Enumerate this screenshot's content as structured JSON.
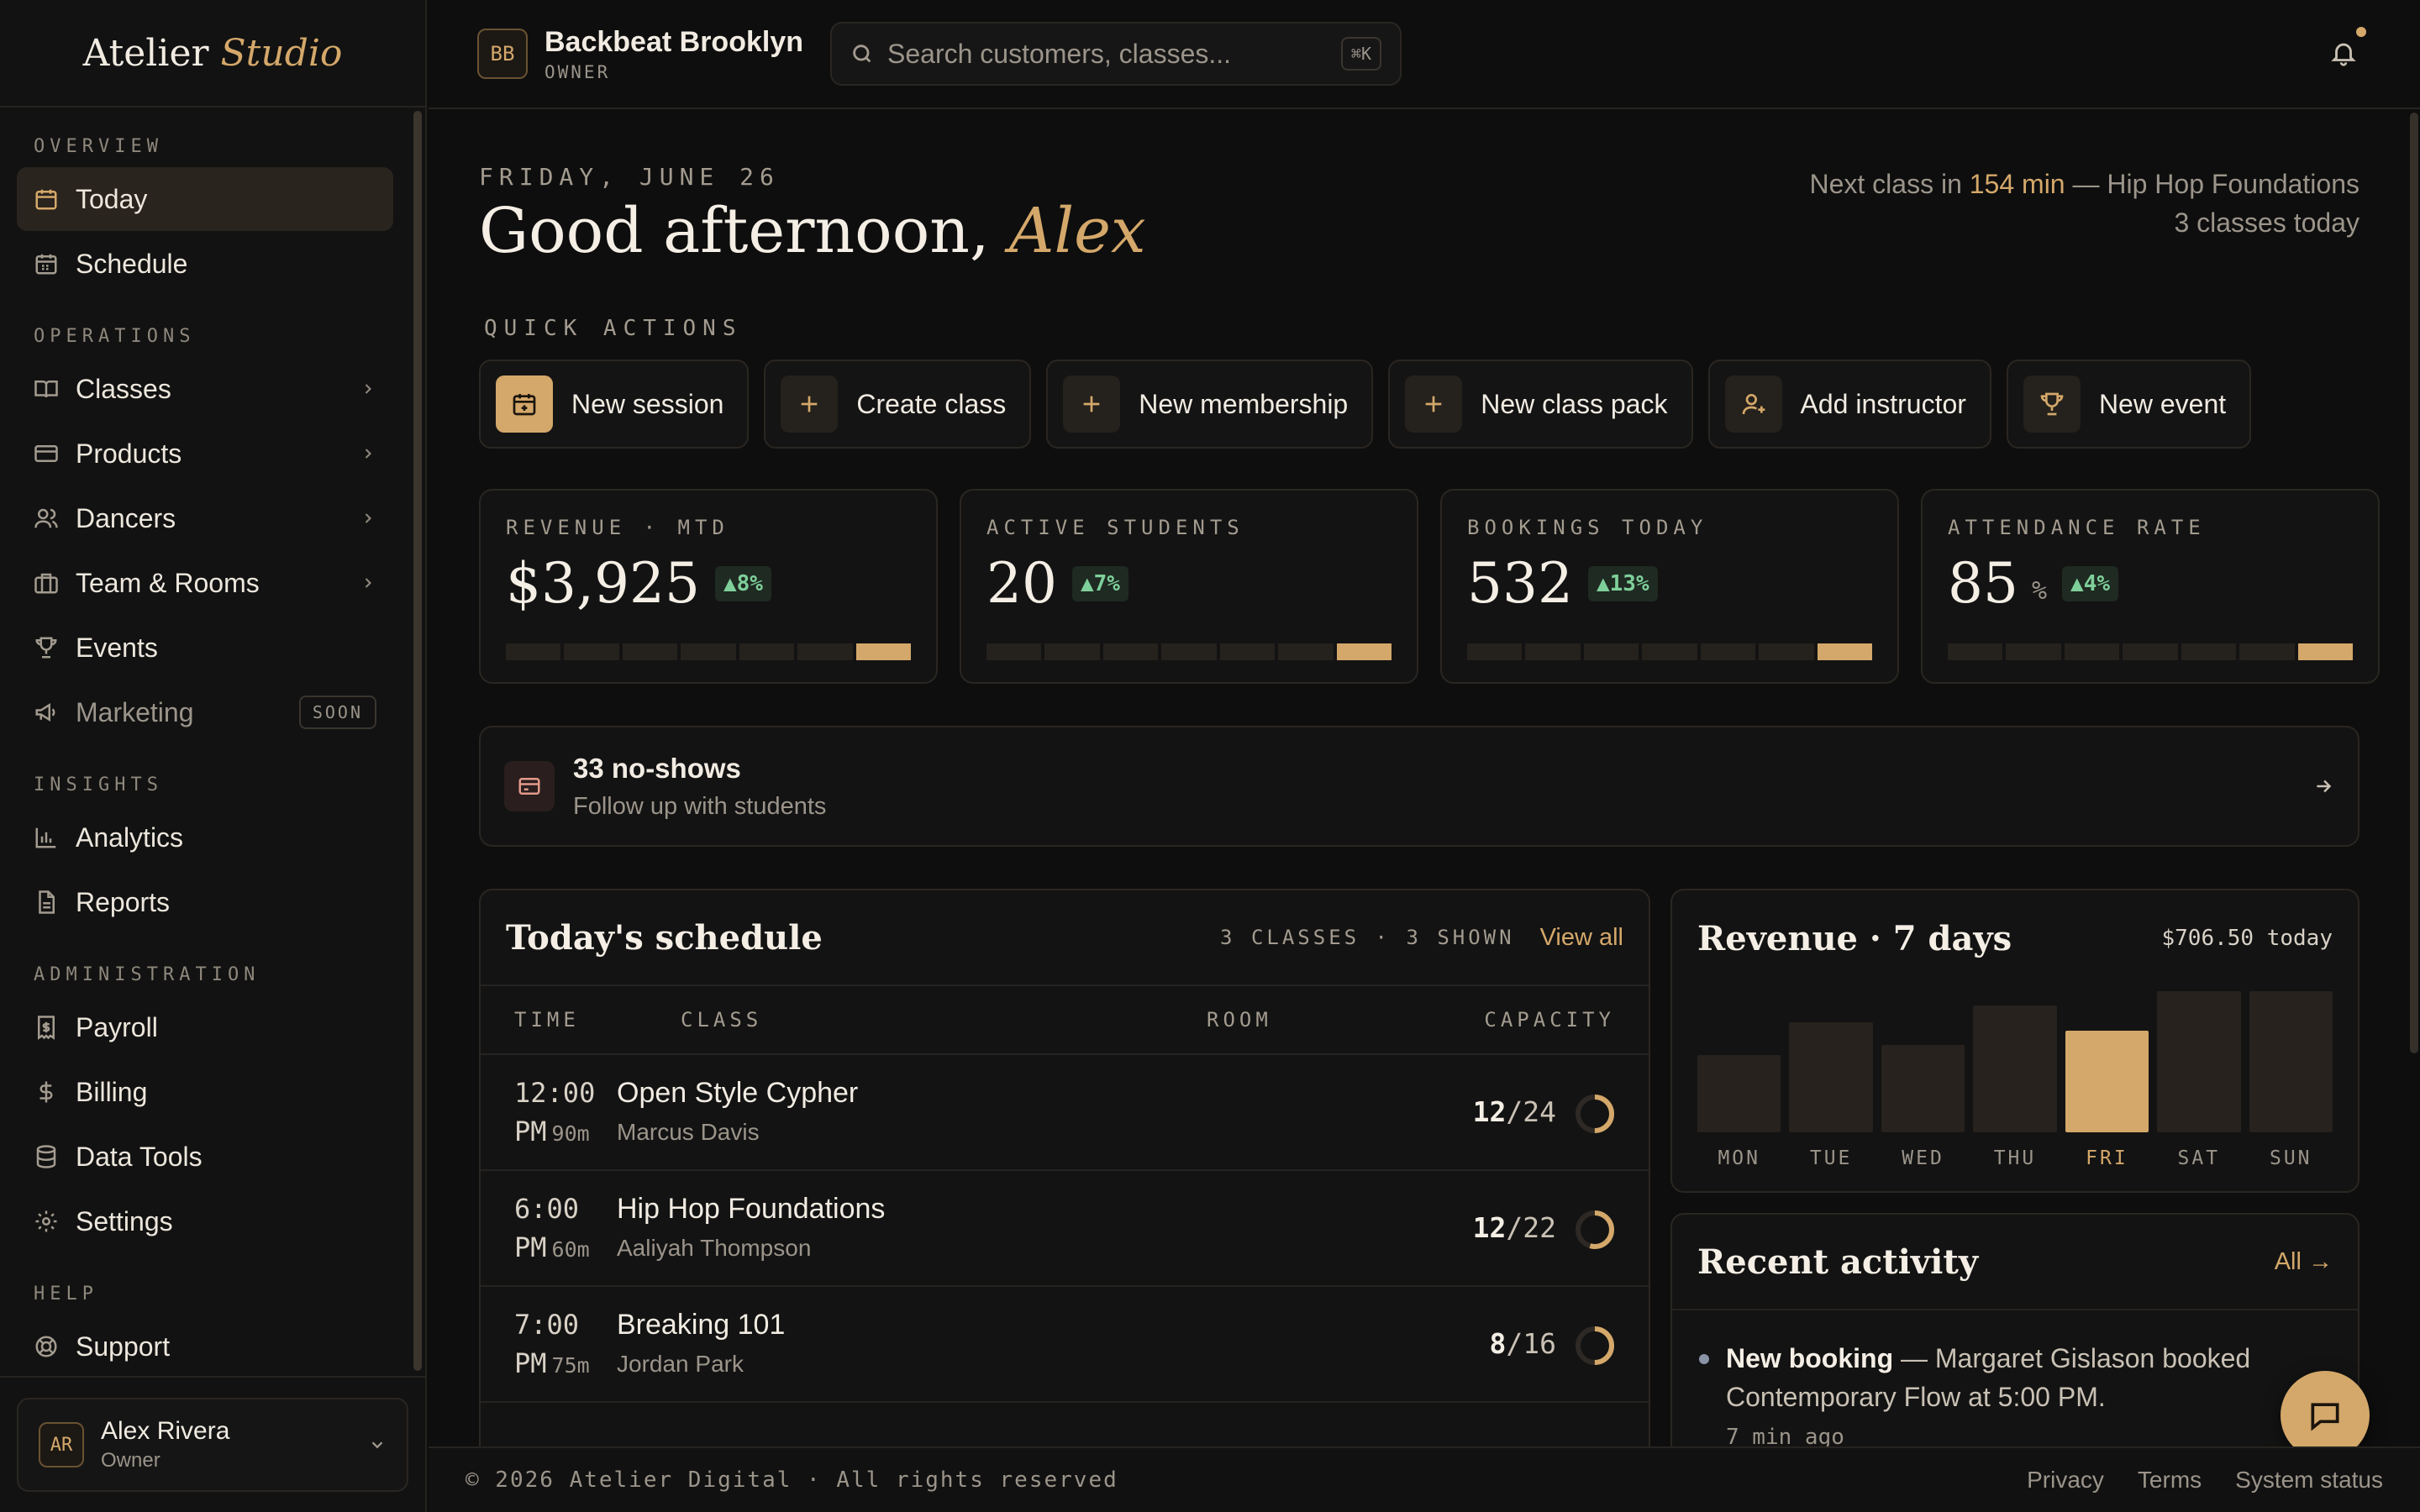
{
  "brand": {
    "name": "Atelier",
    "accent": "Studio"
  },
  "sidebar": {
    "sections": {
      "overview": "OVERVIEW",
      "operations": "OPERATIONS",
      "insights": "INSIGHTS",
      "administration": "ADMINISTRATION",
      "help": "HELP"
    },
    "items": {
      "today": "Today",
      "schedule": "Schedule",
      "classes": "Classes",
      "products": "Products",
      "dancers": "Dancers",
      "team_rooms": "Team & Rooms",
      "events": "Events",
      "marketing": "Marketing",
      "marketing_badge": "SOON",
      "analytics": "Analytics",
      "reports": "Reports",
      "payroll": "Payroll",
      "billing": "Billing",
      "data_tools": "Data Tools",
      "settings": "Settings",
      "support": "Support"
    },
    "user": {
      "initials": "AR",
      "name": "Alex Rivera",
      "role": "Owner"
    }
  },
  "topbar": {
    "studio_initials": "BB",
    "studio_name": "Backbeat Brooklyn",
    "studio_role": "OWNER",
    "search_placeholder": "Search customers, classes...",
    "search_shortcut": "⌘K"
  },
  "header": {
    "date": "FRIDAY, JUNE 26",
    "greeting": "Good afternoon,",
    "name": "Alex",
    "next_class_prefix": "Next class in",
    "next_class_time": "154 min",
    "next_class_suffix": "— Hip Hop Foundations",
    "classes_today": "3 classes today"
  },
  "quick_actions": {
    "label": "QUICK ACTIONS",
    "new_session": "New session",
    "create_class": "Create class",
    "new_membership": "New membership",
    "new_class_pack": "New class pack",
    "add_instructor": "Add instructor",
    "new_event": "New event"
  },
  "kpis": [
    {
      "label": "REVENUE · MTD",
      "value": "$3,925",
      "unit": "",
      "delta": "▲8%"
    },
    {
      "label": "ACTIVE STUDENTS",
      "value": "20",
      "unit": "",
      "delta": "▲7%"
    },
    {
      "label": "BOOKINGS TODAY",
      "value": "532",
      "unit": "",
      "delta": "▲13%"
    },
    {
      "label": "ATTENDANCE RATE",
      "value": "85",
      "unit": "%",
      "delta": "▲4%"
    }
  ],
  "noshows": {
    "title": "33 no-shows",
    "subtitle": "Follow up with students"
  },
  "schedule": {
    "title": "Today's schedule",
    "meta": "3 CLASSES · 3 SHOWN",
    "view_all": "View all",
    "columns": {
      "time": "TIME",
      "class": "CLASS",
      "room": "ROOM",
      "capacity": "CAPACITY"
    },
    "rows": [
      {
        "time": "12:00",
        "ampm": "PM",
        "duration": "90m",
        "name": "Open Style Cypher",
        "instructor": "Marcus Davis",
        "booked": "12",
        "capacity": "/24",
        "fill": 0.5
      },
      {
        "time": "6:00",
        "ampm": "PM",
        "duration": "60m",
        "name": "Hip Hop Foundations",
        "instructor": "Aaliyah Thompson",
        "booked": "12",
        "capacity": "/22",
        "fill": 0.545
      },
      {
        "time": "7:00",
        "ampm": "PM",
        "duration": "75m",
        "name": "Breaking 101",
        "instructor": "Jordan Park",
        "booked": "8",
        "capacity": "/16",
        "fill": 0.5
      }
    ]
  },
  "revenue": {
    "title": "Revenue · 7 days",
    "today": "$706.50 today",
    "days": [
      "MON",
      "TUE",
      "WED",
      "THU",
      "FRI",
      "SAT",
      "SUN"
    ],
    "relative_values": [
      0.55,
      0.78,
      0.62,
      0.9,
      0.72,
      1.0,
      1.0
    ],
    "highlight_index": 4
  },
  "activity": {
    "title": "Recent activity",
    "all": "All →",
    "item_type": "New booking",
    "item_text": "— Margaret Gislason booked Contemporary Flow at 5:00 PM.",
    "item_time": "7 min ago"
  },
  "footer": {
    "copyright": "© 2026 Atelier Digital · All rights reserved",
    "privacy": "Privacy",
    "terms": "Terms",
    "status": "System status"
  },
  "colors": {
    "accent": "#d4a86a",
    "background": "#0e0e0e",
    "positive": "#7fcf9a"
  }
}
